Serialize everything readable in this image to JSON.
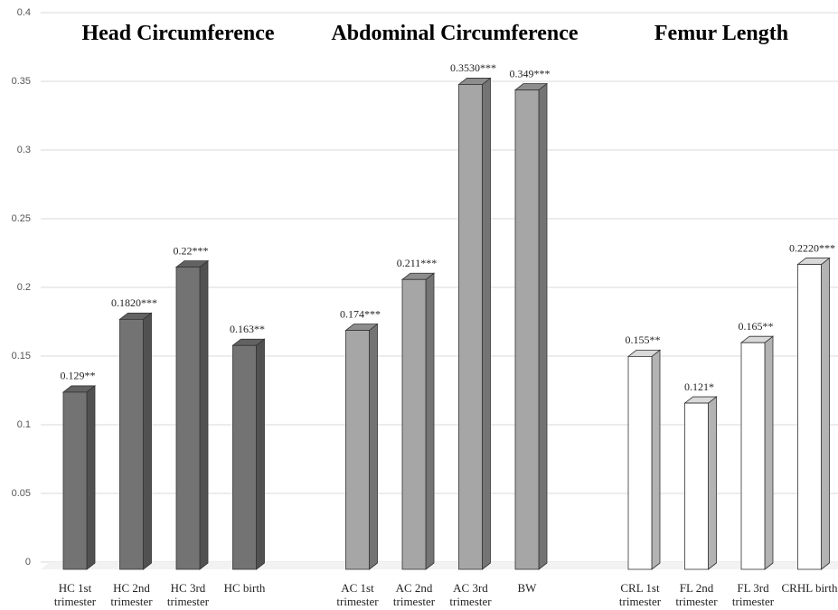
{
  "chart_data": {
    "type": "bar3d",
    "group_titles": [
      "Head Circumference",
      "Abdominal Circumference",
      "Femur Length"
    ],
    "categories": [
      "HC 1st trimester",
      "HC 2nd trimester",
      "HC 3rd trimester",
      "HC birth",
      null,
      "AC 1st trimester",
      "AC 2nd trimester",
      "AC 3rd trimester",
      "BW",
      null,
      "CRL 1st trimester",
      "FL 2nd trimester",
      "FL 3rd trimester",
      "CRHL birth"
    ],
    "values": [
      0.129,
      0.182,
      0.22,
      0.163,
      null,
      0.174,
      0.211,
      0.353,
      0.349,
      null,
      0.155,
      0.121,
      0.165,
      0.222
    ],
    "value_labels": [
      "0.129**",
      "0.1820***",
      "0.22***",
      "0.163**",
      null,
      "0.174***",
      "0.211***",
      "0.3530***",
      "0.349***",
      null,
      "0.155**",
      "0.121*",
      "0.165**",
      "0.2220***"
    ],
    "colors": [
      "#737373",
      "#737373",
      "#737373",
      "#737373",
      null,
      "#a6a6a6",
      "#a6a6a6",
      "#a6a6a6",
      "#a6a6a6",
      null,
      "#ffffff",
      "#ffffff",
      "#ffffff",
      "#ffffff"
    ],
    "ylim": [
      0,
      0.4
    ],
    "yticks": [
      0,
      0.05,
      0.1,
      0.15,
      0.2,
      0.25,
      0.3,
      0.35,
      0.4
    ],
    "grid": true
  }
}
